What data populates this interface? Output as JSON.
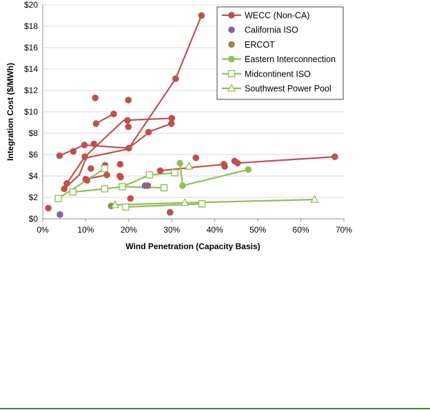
{
  "chart_data": {
    "type": "scatter",
    "xlabel": "Wind Penetration (Capacity Basis)",
    "ylabel": "Integration Cost ($/MWh)",
    "xlim": [
      0,
      70
    ],
    "ylim": [
      0,
      20
    ],
    "x_ticks": [
      "0%",
      "10%",
      "20%",
      "30%",
      "40%",
      "50%",
      "60%",
      "70%"
    ],
    "y_ticks": [
      "$0",
      "$2",
      "$4",
      "$6",
      "$8",
      "$10",
      "$12",
      "$14",
      "$16",
      "$18",
      "$20"
    ],
    "grid": "horizontal",
    "legend_position": "top-right",
    "series": [
      {
        "name": "WECC (Non-CA)",
        "color": "#c0504d",
        "marker": "circle-filled",
        "lines": [
          [
            [
              5.6,
              3.3
            ],
            [
              9.8,
              5.8
            ],
            [
              18.8,
              9.2
            ],
            [
              30,
              9.4
            ]
          ],
          [
            [
              3.9,
              5.9
            ],
            [
              9.7,
              6.9
            ],
            [
              20,
              6.6
            ],
            [
              30.9,
              13.1
            ],
            [
              36.9,
              19.0
            ]
          ],
          [
            [
              12.3,
              8.9
            ],
            [
              16.5,
              9.8
            ]
          ],
          [
            [
              24.4,
              8.1
            ],
            [
              29.9,
              8.9
            ]
          ],
          [
            [
              5,
              2.8
            ],
            [
              8.5,
              4.1
            ],
            [
              10.1,
              5.7
            ],
            [
              19.6,
              6.5
            ],
            [
              24.8,
              8.1
            ]
          ],
          [
            [
              10,
              3.7
            ],
            [
              14.9,
              4.1
            ]
          ],
          [
            [
              27.3,
              4.5
            ],
            [
              42.3,
              5.1
            ]
          ],
          [
            [
              44.9,
              5.2
            ],
            [
              67.9,
              5.8
            ]
          ]
        ],
        "points": [
          [
            1.3,
            1.0
          ],
          [
            5.0,
            2.8
          ],
          [
            5.6,
            3.3
          ],
          [
            3.9,
            5.9
          ],
          [
            7.1,
            6.3
          ],
          [
            9.7,
            6.9
          ],
          [
            11.9,
            7.0
          ],
          [
            9.8,
            5.8
          ],
          [
            10.0,
            3.7
          ],
          [
            10.3,
            3.6
          ],
          [
            11.2,
            4.7
          ],
          [
            12.2,
            11.3
          ],
          [
            12.4,
            8.9
          ],
          [
            14.5,
            5.0
          ],
          [
            14.9,
            4.1
          ],
          [
            16.5,
            9.8
          ],
          [
            17.9,
            4.0
          ],
          [
            18.1,
            3.9
          ],
          [
            18.0,
            5.1
          ],
          [
            19.9,
            11.1
          ],
          [
            19.7,
            9.2
          ],
          [
            19.9,
            8.6
          ],
          [
            20.0,
            6.6
          ],
          [
            20.4,
            1.9
          ],
          [
            24.4,
            3.1
          ],
          [
            24.6,
            8.1
          ],
          [
            27.3,
            4.5
          ],
          [
            29.6,
            0.6
          ],
          [
            29.9,
            8.9
          ],
          [
            30.0,
            9.4
          ],
          [
            30.9,
            13.1
          ],
          [
            35.6,
            5.7
          ],
          [
            36.9,
            19.0
          ],
          [
            42.1,
            5.1
          ],
          [
            42.3,
            4.9
          ],
          [
            44.6,
            5.4
          ],
          [
            45.3,
            5.2
          ],
          [
            67.9,
            5.8
          ]
        ]
      },
      {
        "name": "California ISO",
        "color": "#8064a2",
        "marker": "circle-filled",
        "points": [
          [
            4.0,
            0.4
          ],
          [
            23.8,
            3.1
          ]
        ]
      },
      {
        "name": "ERCOT",
        "color": "#948a54",
        "marker": "circle-filled",
        "points": [
          [
            15.9,
            1.2
          ]
        ]
      },
      {
        "name": "Eastern Interconnection",
        "color": "#8cc152",
        "marker": "circle-filled",
        "lines": [
          [
            [
              31.9,
              5.2
            ],
            [
              32.5,
              3.1
            ],
            [
              47.8,
              4.6
            ]
          ]
        ],
        "points": [
          [
            31.9,
            5.2
          ],
          [
            32.5,
            3.1
          ],
          [
            47.8,
            4.6
          ]
        ]
      },
      {
        "name": "Midcontinent ISO",
        "color": "#8cc152",
        "marker": "square-open",
        "lines": [
          [
            [
              3.6,
              1.9
            ],
            [
              14.4,
              4.7
            ]
          ],
          [
            [
              7.0,
              2.5
            ],
            [
              14.4,
              2.8
            ],
            [
              18.5,
              3.0
            ],
            [
              24.8,
              4.1
            ],
            [
              30.7,
              4.3
            ]
          ],
          [
            [
              18.5,
              3.0
            ],
            [
              28.2,
              2.9
            ]
          ],
          [
            [
              19.3,
              1.1
            ],
            [
              37.0,
              1.4
            ]
          ]
        ],
        "points": [
          [
            3.6,
            1.9
          ],
          [
            7.0,
            2.5
          ],
          [
            14.4,
            2.8
          ],
          [
            14.4,
            4.7
          ],
          [
            18.5,
            3.0
          ],
          [
            19.3,
            1.1
          ],
          [
            24.8,
            4.1
          ],
          [
            28.2,
            2.9
          ],
          [
            30.7,
            4.3
          ],
          [
            37.0,
            1.4
          ]
        ]
      },
      {
        "name": "Southwest Power Pool",
        "color": "#8cc152",
        "marker": "triangle-open",
        "lines": [
          [
            [
              16.8,
              1.3
            ],
            [
              33.0,
              1.5
            ],
            [
              63.2,
              1.8
            ]
          ]
        ],
        "points": [
          [
            16.8,
            1.3
          ],
          [
            33.0,
            1.5
          ],
          [
            34.0,
            4.9
          ],
          [
            63.2,
            1.8
          ]
        ]
      }
    ]
  }
}
